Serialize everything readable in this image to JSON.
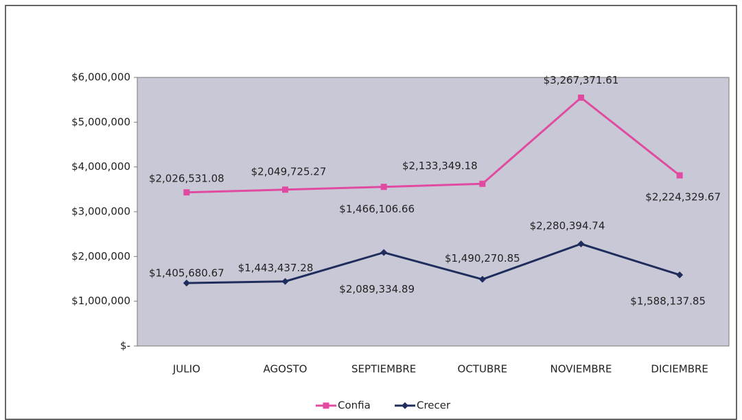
{
  "chart_data": {
    "type": "line",
    "stacked": true,
    "categories": [
      "JULIO",
      "AGOSTO",
      "SEPTIEMBRE",
      "OCTUBRE",
      "NOVIEMBRE",
      "DICIEMBRE"
    ],
    "series": [
      {
        "name": "Crecer",
        "color": "#1f2d5c",
        "marker": "diamond",
        "values": [
          1405680.67,
          1443437.28,
          2089334.89,
          1490270.85,
          2280394.74,
          1588137.85
        ],
        "value_labels": [
          "$1,405,680.67",
          "$1,443,437.28",
          "$2,089,334.89",
          "$1,490,270.85",
          "$2,280,394.74",
          "$1,588,137.85"
        ]
      },
      {
        "name": "Confia",
        "color": "#e04aa0",
        "marker": "square",
        "values": [
          2026531.08,
          2049725.27,
          1466106.66,
          2133349.18,
          3267371.61,
          2224329.67
        ],
        "value_labels": [
          "$2,026,531.08",
          "$2,049,725.27",
          "$1,466,106.66",
          "$2,133,349.18",
          "$3,267,371.61",
          "$2,224,329.67"
        ]
      }
    ],
    "ylim": [
      0,
      6000000
    ],
    "yticks": [
      {
        "value": 0,
        "label": "$-"
      },
      {
        "value": 1000000,
        "label": "$1,000,000"
      },
      {
        "value": 2000000,
        "label": "$2,000,000"
      },
      {
        "value": 3000000,
        "label": "$3,000,000"
      },
      {
        "value": 4000000,
        "label": "$4,000,000"
      },
      {
        "value": 5000000,
        "label": "$5,000,000"
      },
      {
        "value": 6000000,
        "label": "$6,000,000"
      }
    ],
    "legend": "bottom"
  }
}
